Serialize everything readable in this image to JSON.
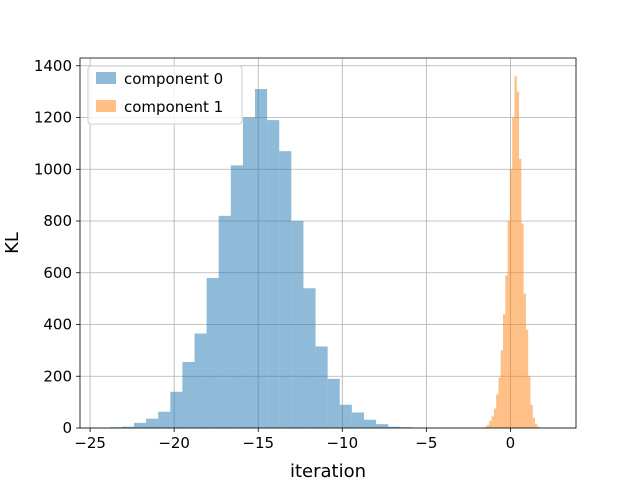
{
  "chart_data": {
    "type": "bar",
    "xlabel": "iteration",
    "ylabel": "KL",
    "xlim": [
      -25.6,
      3.9
    ],
    "ylim": [
      0,
      1430
    ],
    "xticks": [
      -25,
      -20,
      -15,
      -10,
      -5,
      0
    ],
    "yticks": [
      0,
      200,
      400,
      600,
      800,
      1000,
      1200,
      1400
    ],
    "grid": true,
    "legend_position": "top-left",
    "series": [
      {
        "name": "component 0",
        "color": "#1f77b4",
        "alpha": 0.5,
        "bin_width": 0.72,
        "bin_starts": [
          -23.83,
          -23.11,
          -22.39,
          -21.67,
          -20.95,
          -20.23,
          -19.51,
          -18.79,
          -18.07,
          -17.35,
          -16.63,
          -15.91,
          -15.19,
          -14.47,
          -13.75,
          -13.03,
          -12.31,
          -11.59,
          -10.87,
          -10.15,
          -9.43,
          -8.71,
          -7.99,
          -7.27,
          -6.55
        ],
        "counts": [
          3,
          5,
          20,
          36,
          63,
          140,
          255,
          365,
          580,
          820,
          1015,
          1200,
          1310,
          1190,
          1070,
          800,
          540,
          315,
          190,
          90,
          60,
          32,
          15,
          5,
          3
        ]
      },
      {
        "name": "component 1",
        "color": "#ff7f0e",
        "alpha": 0.5,
        "bin_width": 0.136,
        "bin_starts": [
          -1.8,
          -1.664,
          -1.528,
          -1.392,
          -1.256,
          -1.12,
          -0.984,
          -0.848,
          -0.712,
          -0.576,
          -0.44,
          -0.304,
          -0.168,
          -0.032,
          0.104,
          0.24,
          0.376,
          0.512,
          0.648,
          0.784,
          0.92,
          1.056,
          1.192,
          1.328,
          1.464,
          1.6,
          1.736,
          1.872
        ],
        "counts": [
          1,
          2,
          5,
          12,
          28,
          45,
          75,
          130,
          195,
          300,
          440,
          590,
          800,
          1000,
          1200,
          1360,
          1300,
          1040,
          790,
          520,
          380,
          200,
          90,
          40,
          14,
          5,
          2,
          1
        ]
      }
    ]
  }
}
